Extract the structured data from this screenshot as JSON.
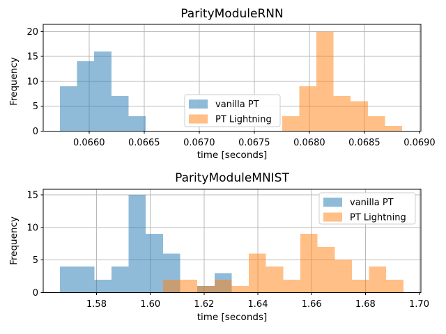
{
  "figure": {
    "background": "#ffffff"
  },
  "style": {
    "bar_alpha": 0.5,
    "grid_color": "#b9b9b9",
    "spine_color": "#000000",
    "tick_color": "#000000",
    "text_color": "#000000",
    "legend_bg": "#ffffff",
    "legend_border": "#cccccc"
  },
  "legend": {
    "items": [
      {
        "label": "vanilla PT",
        "color": "#1f77b4"
      },
      {
        "label": "PT Lightning",
        "color": "#ff7f0e"
      }
    ]
  },
  "chart_data": [
    {
      "type": "histogram",
      "title": "ParityModuleRNN",
      "xlabel": "time [seconds]",
      "ylabel": "Frequency",
      "xlim": [
        0.065584,
        0.069013
      ],
      "ylim": [
        0,
        21.44
      ],
      "grid": true,
      "legend_loc": "center",
      "x_ticks": [
        {
          "value": 0.066,
          "label": "0.0660"
        },
        {
          "value": 0.0665,
          "label": "0.0665"
        },
        {
          "value": 0.067,
          "label": "0.0670"
        },
        {
          "value": 0.0675,
          "label": "0.0675"
        },
        {
          "value": 0.068,
          "label": "0.0680"
        },
        {
          "value": 0.0685,
          "label": "0.0685"
        },
        {
          "value": 0.069,
          "label": "0.0690"
        }
      ],
      "y_ticks": [
        {
          "value": 0,
          "label": "0"
        },
        {
          "value": 5,
          "label": "5"
        },
        {
          "value": 10,
          "label": "10"
        },
        {
          "value": 15,
          "label": "15"
        },
        {
          "value": 20,
          "label": "20"
        }
      ],
      "series": [
        {
          "name": "vanilla PT",
          "color": "#1f77b4",
          "bin_edges": [
            0.065736,
            0.065891,
            0.066047,
            0.066203,
            0.066358,
            0.066514
          ],
          "counts": [
            9,
            14,
            16,
            7,
            3
          ]
        },
        {
          "name": "PT Lightning",
          "color": "#ff7f0e",
          "bin_edges": [
            0.067754,
            0.067909,
            0.068065,
            0.06822,
            0.068375,
            0.068531,
            0.068686,
            0.068842
          ],
          "counts": [
            3,
            9,
            20,
            7,
            6,
            3,
            1
          ]
        }
      ]
    },
    {
      "type": "histogram",
      "title": "ParityModuleMNIST",
      "xlabel": "time [seconds]",
      "ylabel": "Frequency",
      "xlim": [
        1.56017,
        1.70065
      ],
      "ylim": [
        0,
        15.85
      ],
      "grid": true,
      "legend_loc": "upper right",
      "x_ticks": [
        {
          "value": 1.58,
          "label": "1.58"
        },
        {
          "value": 1.6,
          "label": "1.60"
        },
        {
          "value": 1.62,
          "label": "1.62"
        },
        {
          "value": 1.64,
          "label": "1.64"
        },
        {
          "value": 1.66,
          "label": "1.66"
        },
        {
          "value": 1.68,
          "label": "1.68"
        },
        {
          "value": 1.7,
          "label": "1.70"
        }
      ],
      "y_ticks": [
        {
          "value": 0,
          "label": "0"
        },
        {
          "value": 5,
          "label": "5"
        },
        {
          "value": 10,
          "label": "10"
        },
        {
          "value": 15,
          "label": "15"
        }
      ],
      "series": [
        {
          "name": "vanilla PT",
          "color": "#1f77b4",
          "bin_edges": [
            1.56639,
            1.57278,
            1.57917,
            1.58555,
            1.59194,
            1.59833,
            1.60471,
            1.6111,
            1.61749,
            1.62387,
            1.63026
          ],
          "counts": [
            4,
            4,
            2,
            4,
            15,
            9,
            6,
            0,
            1,
            3
          ]
        },
        {
          "name": "PT Lightning",
          "color": "#ff7f0e",
          "bin_edges": [
            1.60471,
            1.6111,
            1.61749,
            1.62387,
            1.63026,
            1.63665,
            1.64303,
            1.64942,
            1.65581,
            1.66219,
            1.66858,
            1.67497,
            1.68135,
            1.68774,
            1.69413
          ],
          "counts": [
            2,
            2,
            1,
            2,
            1,
            6,
            4,
            2,
            9,
            7,
            5,
            2,
            4,
            2
          ]
        }
      ]
    }
  ]
}
